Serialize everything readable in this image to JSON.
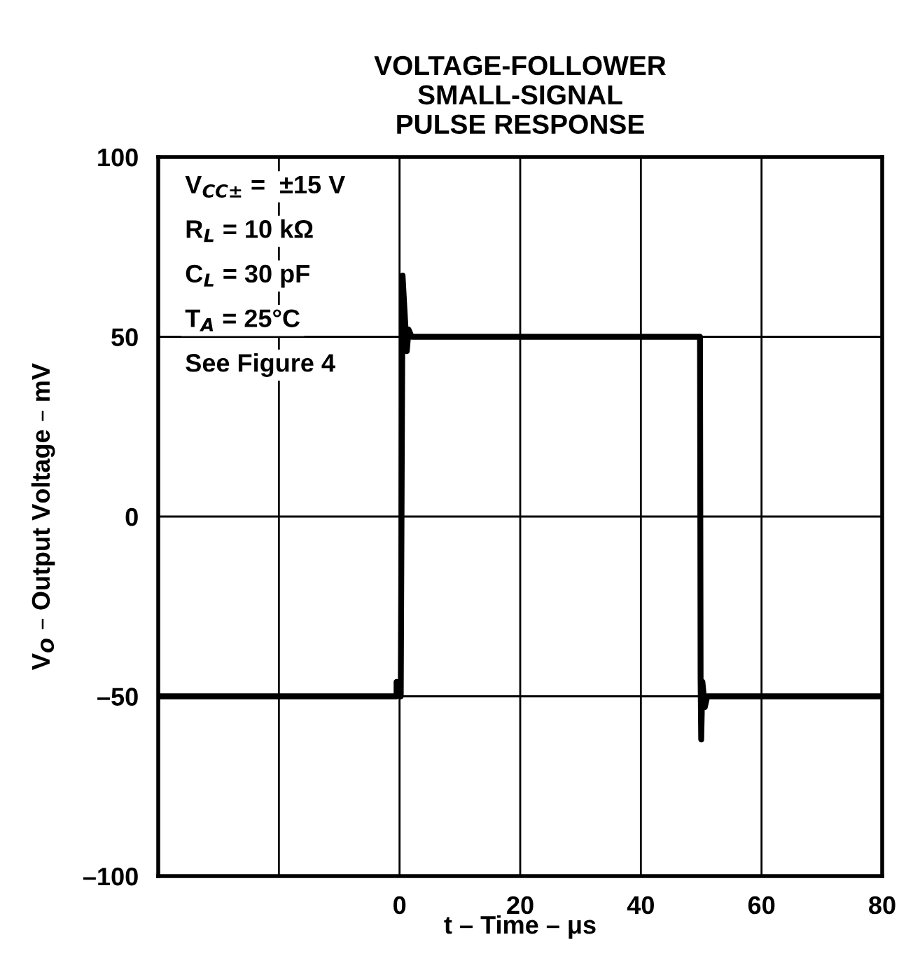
{
  "chart_data": {
    "type": "line",
    "title": "VOLTAGE-FOLLOWER\nSMALL-SIGNAL\nPULSE RESPONSE",
    "xlabel": "t – Time – μs",
    "ylabel": "V$_{O}$ – Output Voltage – mV",
    "x": [
      -40,
      -0.5,
      -0.5,
      0.2,
      0.5,
      1.2,
      1.5,
      2,
      49.8,
      49.9,
      50,
      50.2,
      50.6,
      51,
      80
    ],
    "series": [
      {
        "color": "#000000",
        "values": [
          -50,
          -50,
          -46,
          -50,
          67,
          46,
          52,
          50,
          50,
          -45,
          -62,
          -46,
          -53,
          -50,
          -50
        ]
      }
    ],
    "xlim": [
      -40,
      80
    ],
    "xticks": [
      {
        "value": -40,
        "label": null
      },
      {
        "value": -20,
        "label": null
      },
      0,
      20,
      40,
      60,
      80
    ],
    "ylim": [
      -100,
      100
    ],
    "yticks": [
      {
        "value": -100,
        "label": "–100"
      },
      {
        "value": -50,
        "label": "–50"
      },
      0,
      50,
      100
    ],
    "grid": true,
    "marker": "none",
    "line_style": "solid",
    "annotations": [
      "V$_{CC±}$ =  ±15 V",
      "R$_{L}$ = 10 kΩ",
      "C$_{L}$ = 30 pF",
      "T$_{A}$ = 25°C",
      "See Figure 4"
    ]
  }
}
